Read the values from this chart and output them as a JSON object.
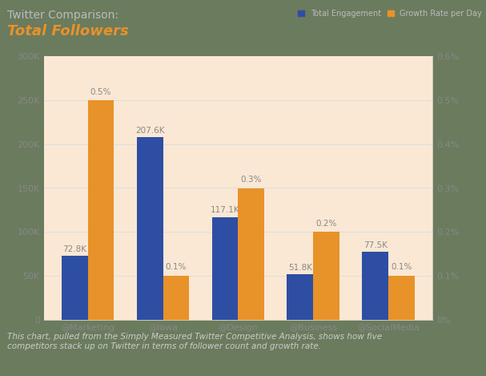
{
  "title_line1": "Twitter Comparison:",
  "title_line2": "Total Followers",
  "categories": [
    "@Marketing",
    "@Iowa",
    "@Design",
    "@Business",
    "@SocialMedia"
  ],
  "followers": [
    72800,
    207600,
    117100,
    51800,
    77500
  ],
  "growth_rates": [
    0.005,
    0.001,
    0.003,
    0.002,
    0.001
  ],
  "follower_labels": [
    "72.8K",
    "207.6K",
    "117.1K",
    "51.8K",
    "77.5K"
  ],
  "growth_labels": [
    "0.5%",
    "0.1%",
    "0.3%",
    "0.2%",
    "0.1%"
  ],
  "bar_color_blue": "#2E4EA3",
  "bar_color_orange": "#E8922A",
  "background_outer": "#6B7B5E",
  "background_header": "#6B7B5E",
  "background_chart": "#FAE8D4",
  "background_footer": "#6B7B5E",
  "title1_color": "#BBBBBB",
  "title2_color": "#E8922A",
  "legend_label_blue": "Total Engagement",
  "legend_label_orange": "Growth Rate per Day",
  "footer_text": "This chart, pulled from the Simply Measured Twitter Competitive Analysis, shows how five\ncompetitors stack up on Twitter in terms of follower count and growth rate.",
  "footer_color": "#CCCCCC",
  "ylim_left": [
    0,
    300000
  ],
  "ylim_right": [
    0,
    0.006
  ],
  "yticks_left": [
    0,
    50000,
    100000,
    150000,
    200000,
    250000,
    300000
  ],
  "ytick_labels_left": [
    "0",
    "50K",
    "100K",
    "150K",
    "200K",
    "250K",
    "300K"
  ],
  "yticks_right": [
    0,
    0.001,
    0.002,
    0.003,
    0.004,
    0.005,
    0.006
  ],
  "ytick_labels_right": [
    "0%",
    "0.1%",
    "0.2%",
    "0.3%",
    "0.4%",
    "0.5%",
    "0.6%"
  ],
  "grid_color": "#DDDDDD",
  "label_fontsize": 7.5,
  "tick_fontsize": 8,
  "axis_label_color": "#888888",
  "legend_text_color": "#BBBBBB"
}
